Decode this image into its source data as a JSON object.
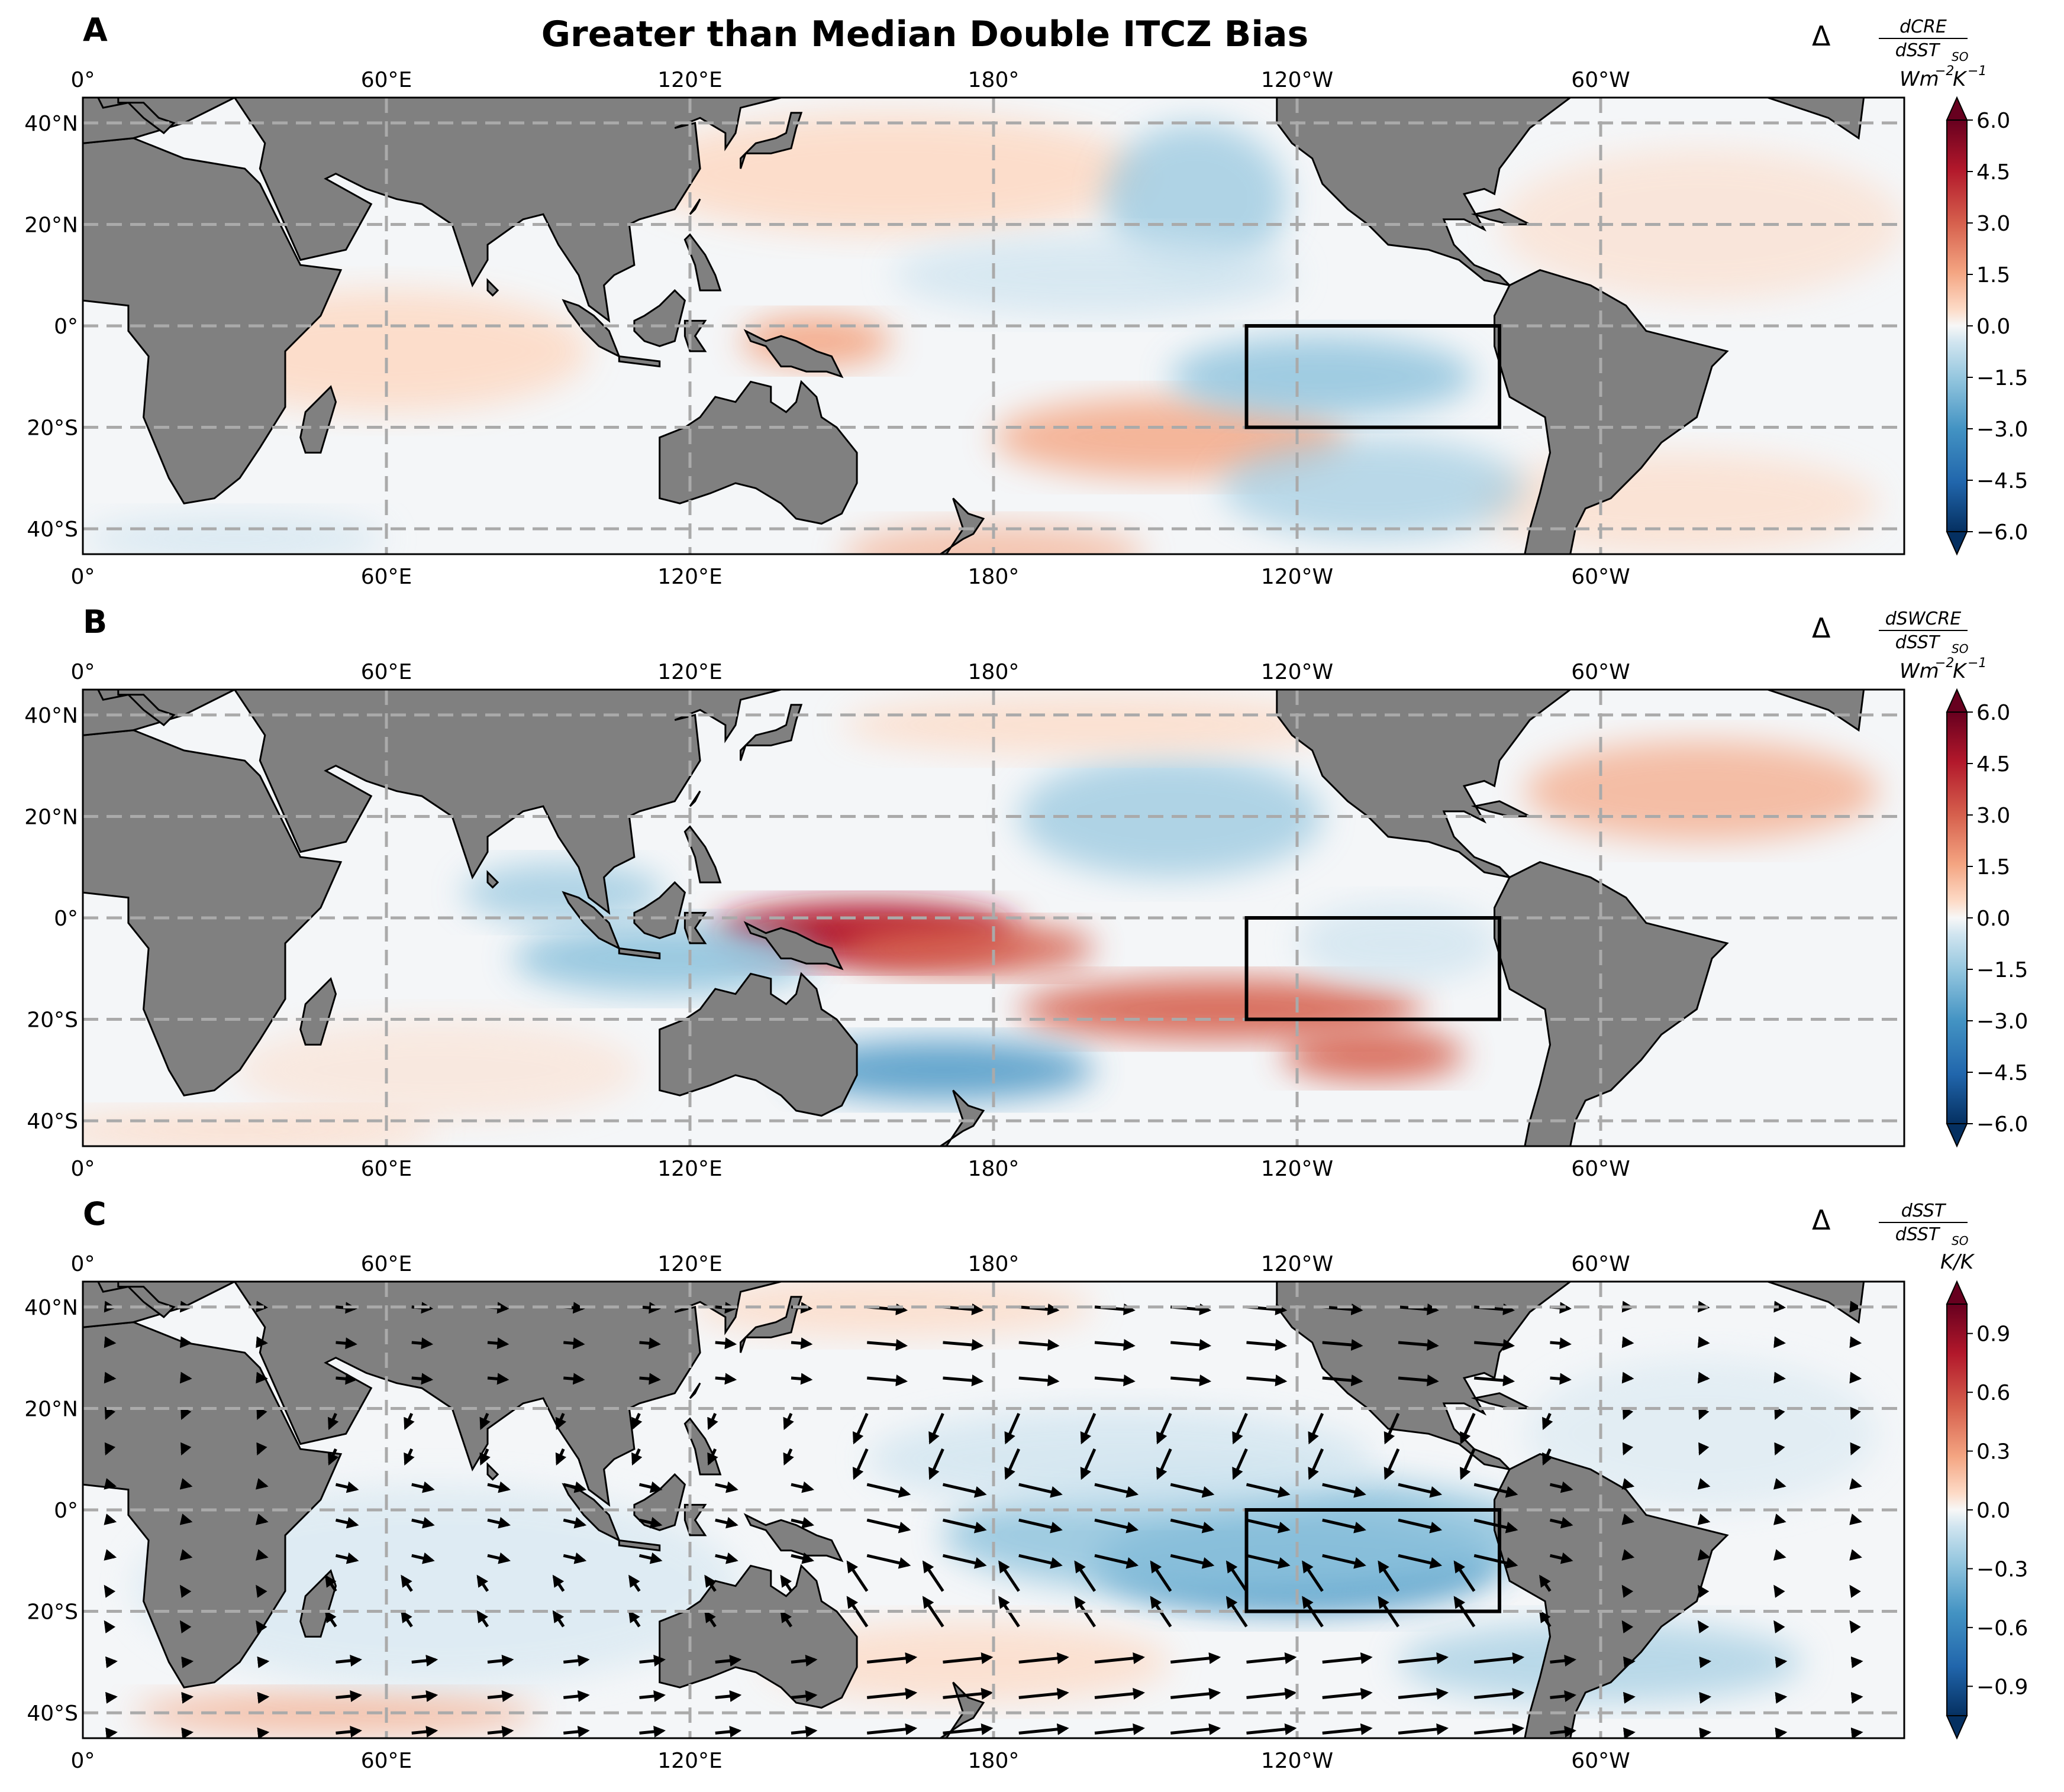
{
  "figure": {
    "title": "Greater than Median Double ITCZ Bias"
  },
  "axes": {
    "lon_labels": [
      "0°",
      "60°E",
      "120°E",
      "180°",
      "120°W",
      "60°W"
    ],
    "lat_labels": [
      "40°N",
      "20°N",
      "0°",
      "20°S",
      "40°S"
    ],
    "lon_values": [
      0,
      60,
      120,
      180,
      240,
      300
    ],
    "lat_values": [
      40,
      20,
      0,
      -20,
      -40
    ],
    "extent": {
      "lon": [
        0,
        360
      ],
      "lat": [
        -45,
        45
      ]
    },
    "gridlines": "dashed",
    "box_region": {
      "lon": [
        230,
        280
      ],
      "lat": [
        -20,
        0
      ]
    }
  },
  "colors": {
    "land": "#808080",
    "gridline": "#aaaaaa",
    "colormap": "RdBu_r",
    "arrows": "#000000"
  },
  "panels": [
    {
      "letter": "A",
      "var_symbol": "Δ",
      "var_num": "dCRE",
      "var_den": "dSST",
      "var_den_sub": "SO",
      "units": "Wm",
      "units_sup1": "−2",
      "units_mid": "K",
      "units_sup2": "−1",
      "cbar_ticks": [
        "6.0",
        "4.5",
        "3.0",
        "1.5",
        "0.0",
        "−1.5",
        "−3.0",
        "−4.5",
        "−6.0"
      ],
      "cbar_range": [
        -6,
        6
      ]
    },
    {
      "letter": "B",
      "var_symbol": "Δ",
      "var_num": "dSWCRE",
      "var_den": "dSST",
      "var_den_sub": "SO",
      "units": "Wm",
      "units_sup1": "−2",
      "units_mid": "K",
      "units_sup2": "−1",
      "cbar_ticks": [
        "6.0",
        "4.5",
        "3.0",
        "1.5",
        "0.0",
        "−1.5",
        "−3.0",
        "−4.5",
        "−6.0"
      ],
      "cbar_range": [
        -6,
        6
      ]
    },
    {
      "letter": "C",
      "var_symbol": "Δ",
      "var_num": "dSST",
      "var_den": "dSST",
      "var_den_sub": "SO",
      "units": "K/K",
      "cbar_ticks": [
        "0.9",
        "0.6",
        "0.3",
        "0.0",
        "−0.3",
        "−0.6",
        "−0.9"
      ],
      "cbar_range": [
        -1.05,
        1.05
      ],
      "has_wind_vectors": true
    }
  ]
}
